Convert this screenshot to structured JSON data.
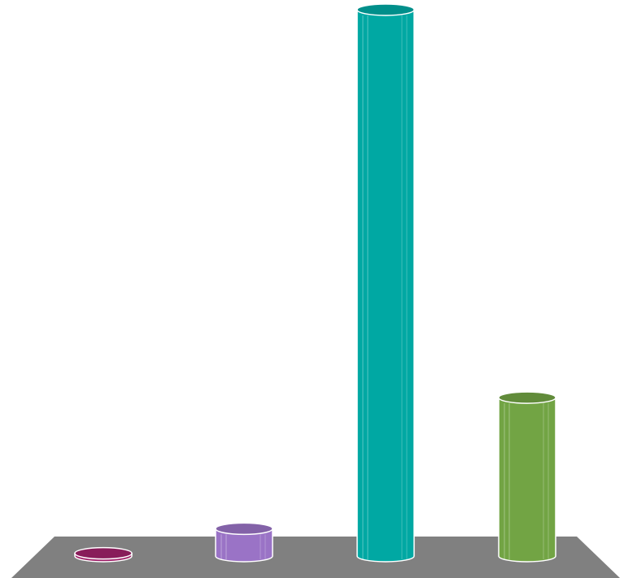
{
  "chart_data": {
    "type": "bar",
    "style": "3d-cylinder",
    "title": "",
    "xlabel": "",
    "ylabel": "",
    "categories": [
      "",
      "",
      "",
      ""
    ],
    "values": [
      0.5,
      5,
      100,
      29
    ],
    "ylim": [
      0,
      100
    ],
    "grid": false,
    "legend": "none",
    "colors": [
      "#a0226a",
      "#9a73c6",
      "#00a8a3",
      "#72a444"
    ],
    "floor_color": "#808080",
    "outline_color": "#ffffff"
  }
}
